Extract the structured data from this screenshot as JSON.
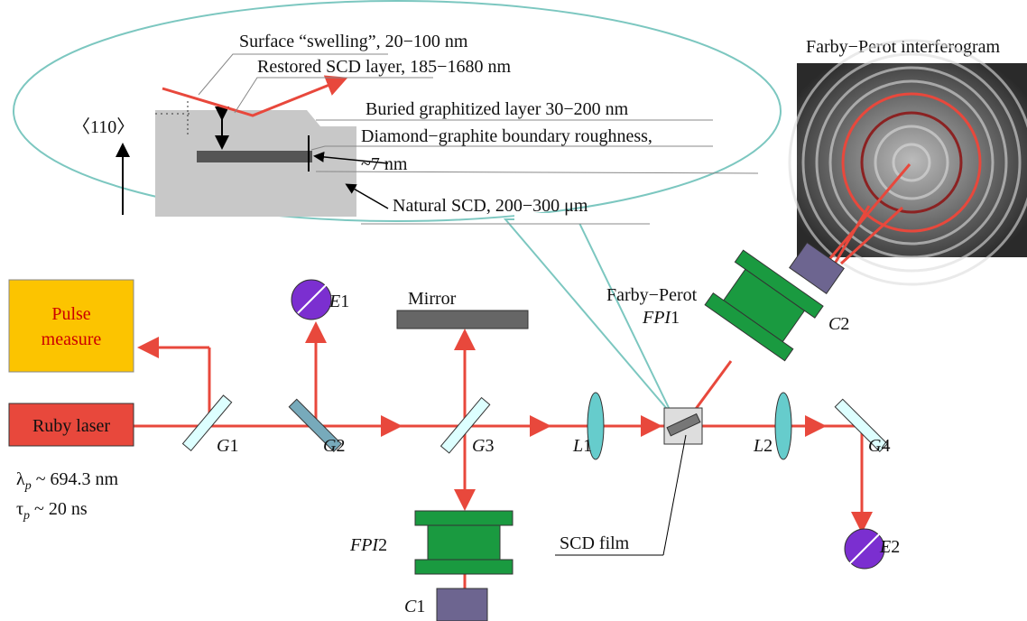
{
  "inset": {
    "axis": "〈110〉",
    "labels": [
      "Surface “swelling”, 20−100 nm",
      "Restored SCD layer, 185−1680 nm",
      "Buried graphitized layer 30−200 nm",
      "Diamond−graphite boundary roughness,",
      "~7 nm",
      "Natural SCD, 200−300 μm"
    ]
  },
  "interferogram": "Farby−Perot interferogram",
  "boxes": {
    "pulse": [
      "Pulse",
      "measure"
    ],
    "laser": "Ruby laser"
  },
  "params": [
    {
      "symbol": "λ",
      "sub": "p",
      "text": " ~ 694.3 nm"
    },
    {
      "symbol": "τ",
      "sub": "p",
      "text": " ~ 20 ns"
    }
  ],
  "mirror": "Mirror",
  "fpi1": {
    "title": "Farby−Perot",
    "letter": "FPI",
    "number": "1"
  },
  "components": [
    {
      "letter": "E",
      "number": "1"
    },
    {
      "letter": "E",
      "number": "2"
    },
    {
      "letter": "G",
      "number": "1"
    },
    {
      "letter": "G",
      "number": "2"
    },
    {
      "letter": "G",
      "number": "3"
    },
    {
      "letter": "G",
      "number": "4"
    },
    {
      "letter": "L",
      "number": "1"
    },
    {
      "letter": "L",
      "number": "2"
    },
    {
      "letter": "FPI",
      "number": "2"
    },
    {
      "letter": "C",
      "number": "1"
    },
    {
      "letter": "C",
      "number": "2"
    }
  ],
  "film": "SCD film"
}
